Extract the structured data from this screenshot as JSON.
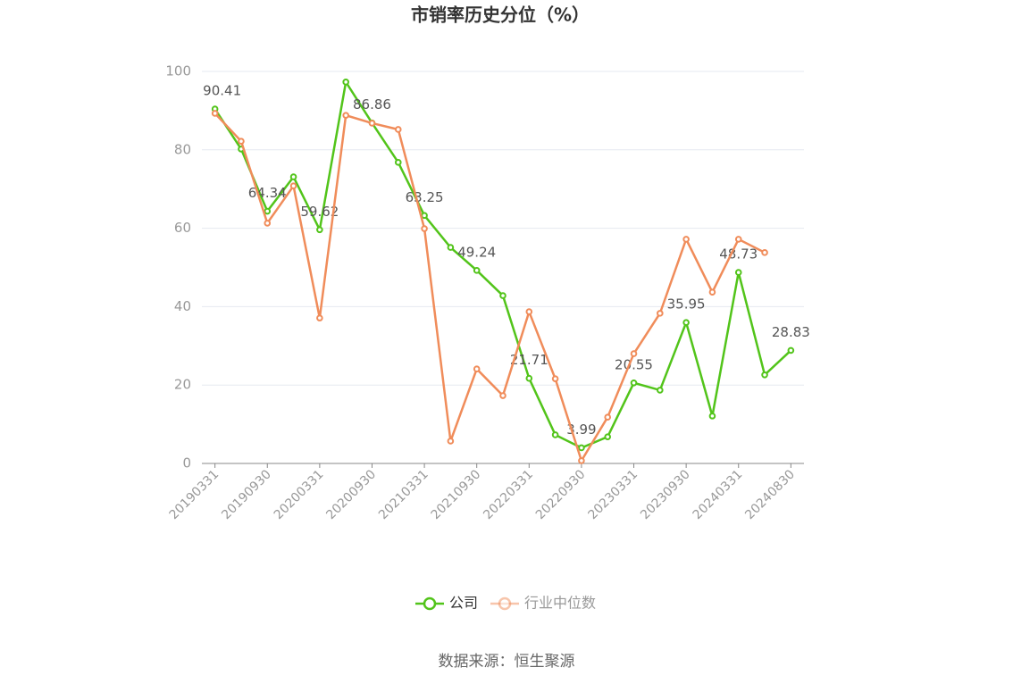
{
  "chart_data": {
    "type": "line",
    "title": "市销率历史分位（%）",
    "categories": [
      "20190331",
      null,
      "20190930",
      null,
      "20200331",
      null,
      "20200930",
      null,
      "20210331",
      null,
      "20210930",
      null,
      "20220331",
      null,
      "20220930",
      null,
      "20230331",
      null,
      "20230930",
      null,
      "20240331",
      null,
      "20240830"
    ],
    "series": [
      {
        "name": "公司",
        "color": "#52c41a",
        "values": [
          90.41,
          80.2,
          64.34,
          73.1,
          59.62,
          97.3,
          86.86,
          76.8,
          63.25,
          55.1,
          49.24,
          42.8,
          21.71,
          7.3,
          3.99,
          6.8,
          20.55,
          18.7,
          35.95,
          12.1,
          48.73,
          22.6,
          28.83
        ]
      },
      {
        "name": "行业中位数",
        "color": "#f08c5a",
        "values": [
          89.3,
          82.2,
          61.3,
          70.8,
          37.1,
          88.8,
          86.8,
          85.2,
          59.9,
          5.7,
          24.1,
          17.3,
          38.7,
          21.6,
          0.7,
          11.8,
          28.0,
          38.3,
          57.2,
          43.7,
          57.2,
          53.8,
          null
        ]
      }
    ],
    "ylim": [
      0,
      100
    ],
    "yticks": [
      0,
      20,
      40,
      60,
      80,
      100
    ],
    "grid": true,
    "legend": "bottom",
    "source": "数据来源：恒生聚源"
  }
}
